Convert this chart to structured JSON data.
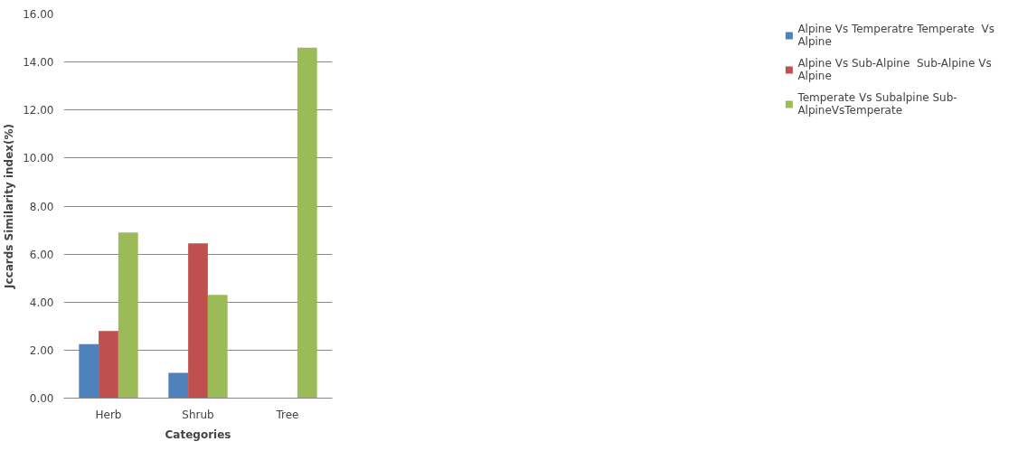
{
  "chart_data": {
    "type": "bar",
    "xlabel": "Categories",
    "ylabel": "Jccards Similarity index(%)",
    "categories": [
      "Herb",
      "Shrub",
      "Tree"
    ],
    "series": [
      {
        "name": "Alpine Vs Temperatre Temperate  Vs Alpine",
        "color": "#4f81bd",
        "values": [
          2.25,
          1.05,
          null
        ]
      },
      {
        "name": " Alpine Vs Sub-Alpine  Sub-Alpine Vs Alpine",
        "color": "#c0504d",
        "values": [
          2.8,
          6.45,
          null
        ]
      },
      {
        "name": "Temperate Vs Subalpine Sub-AlpineVsTemperate",
        "color": "#9bbb59",
        "values": [
          6.9,
          4.3,
          14.6
        ]
      }
    ],
    "ylim": [
      0,
      16
    ],
    "yticks": [
      {
        "value": 0,
        "label": "0.00"
      },
      {
        "value": 2,
        "label": "2.00"
      },
      {
        "value": 4,
        "label": "4.00"
      },
      {
        "value": 6,
        "label": "6.00"
      },
      {
        "value": 8,
        "label": "8.00"
      },
      {
        "value": 10,
        "label": "10.00"
      },
      {
        "value": 12,
        "label": "12.00"
      },
      {
        "value": 14,
        "label": "14.00"
      },
      {
        "value": 16,
        "label": "16.00"
      }
    ],
    "grid": "y",
    "legend": "right"
  }
}
